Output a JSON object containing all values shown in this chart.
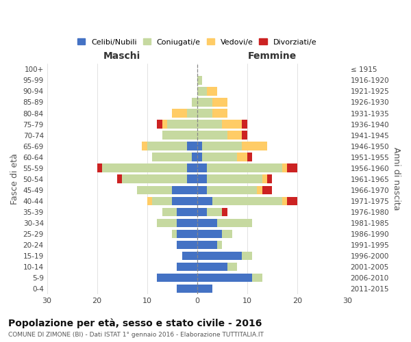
{
  "age_groups": [
    "0-4",
    "5-9",
    "10-14",
    "15-19",
    "20-24",
    "25-29",
    "30-34",
    "35-39",
    "40-44",
    "45-49",
    "50-54",
    "55-59",
    "60-64",
    "65-69",
    "70-74",
    "75-79",
    "80-84",
    "85-89",
    "90-94",
    "95-99",
    "100+"
  ],
  "birth_years": [
    "2011-2015",
    "2006-2010",
    "2001-2005",
    "1996-2000",
    "1991-1995",
    "1986-1990",
    "1981-1985",
    "1976-1980",
    "1971-1975",
    "1966-1970",
    "1961-1965",
    "1956-1960",
    "1951-1955",
    "1946-1950",
    "1941-1945",
    "1936-1940",
    "1931-1935",
    "1926-1930",
    "1921-1925",
    "1916-1920",
    "≤ 1915"
  ],
  "males": {
    "celibi": [
      4,
      8,
      4,
      3,
      4,
      4,
      4,
      4,
      5,
      5,
      2,
      2,
      1,
      2,
      0,
      0,
      0,
      0,
      0,
      0,
      0
    ],
    "coniugati": [
      0,
      0,
      0,
      0,
      0,
      1,
      4,
      3,
      4,
      7,
      13,
      17,
      8,
      8,
      7,
      6,
      2,
      1,
      0,
      0,
      0
    ],
    "vedovi": [
      0,
      0,
      0,
      0,
      0,
      0,
      0,
      0,
      1,
      0,
      0,
      0,
      0,
      1,
      0,
      1,
      3,
      0,
      0,
      0,
      0
    ],
    "divorziati": [
      0,
      0,
      0,
      0,
      0,
      0,
      0,
      0,
      0,
      0,
      1,
      1,
      0,
      0,
      0,
      1,
      0,
      0,
      0,
      0,
      0
    ]
  },
  "females": {
    "nubili": [
      3,
      11,
      6,
      9,
      4,
      5,
      4,
      2,
      3,
      2,
      2,
      2,
      1,
      1,
      0,
      0,
      0,
      0,
      0,
      0,
      0
    ],
    "coniugate": [
      0,
      2,
      2,
      2,
      1,
      2,
      7,
      3,
      14,
      10,
      11,
      15,
      7,
      8,
      6,
      5,
      3,
      3,
      2,
      1,
      0
    ],
    "vedove": [
      0,
      0,
      0,
      0,
      0,
      0,
      0,
      0,
      1,
      1,
      1,
      1,
      2,
      5,
      3,
      4,
      3,
      3,
      2,
      0,
      0
    ],
    "divorziate": [
      0,
      0,
      0,
      0,
      0,
      0,
      0,
      1,
      2,
      2,
      1,
      2,
      1,
      0,
      1,
      1,
      0,
      0,
      0,
      0,
      0
    ]
  },
  "color_celibi": "#4472C4",
  "color_coniugati": "#C6D9A0",
  "color_vedovi": "#FFCC66",
  "color_divorziati": "#CC2222",
  "title": "Popolazione per età, sesso e stato civile - 2016",
  "subtitle": "COMUNE DI ZIMONE (BI) - Dati ISTAT 1° gennaio 2016 - Elaborazione TUTTITALIA.IT",
  "xlabel_left": "Maschi",
  "xlabel_right": "Femmine",
  "ylabel_left": "Fasce di età",
  "ylabel_right": "Anni di nascita",
  "legend_labels": [
    "Celibi/Nubili",
    "Coniugati/e",
    "Vedovi/e",
    "Divorziati/e"
  ],
  "xlim": 30,
  "bg_color": "#FFFFFF",
  "grid_color": "#CCCCCC"
}
